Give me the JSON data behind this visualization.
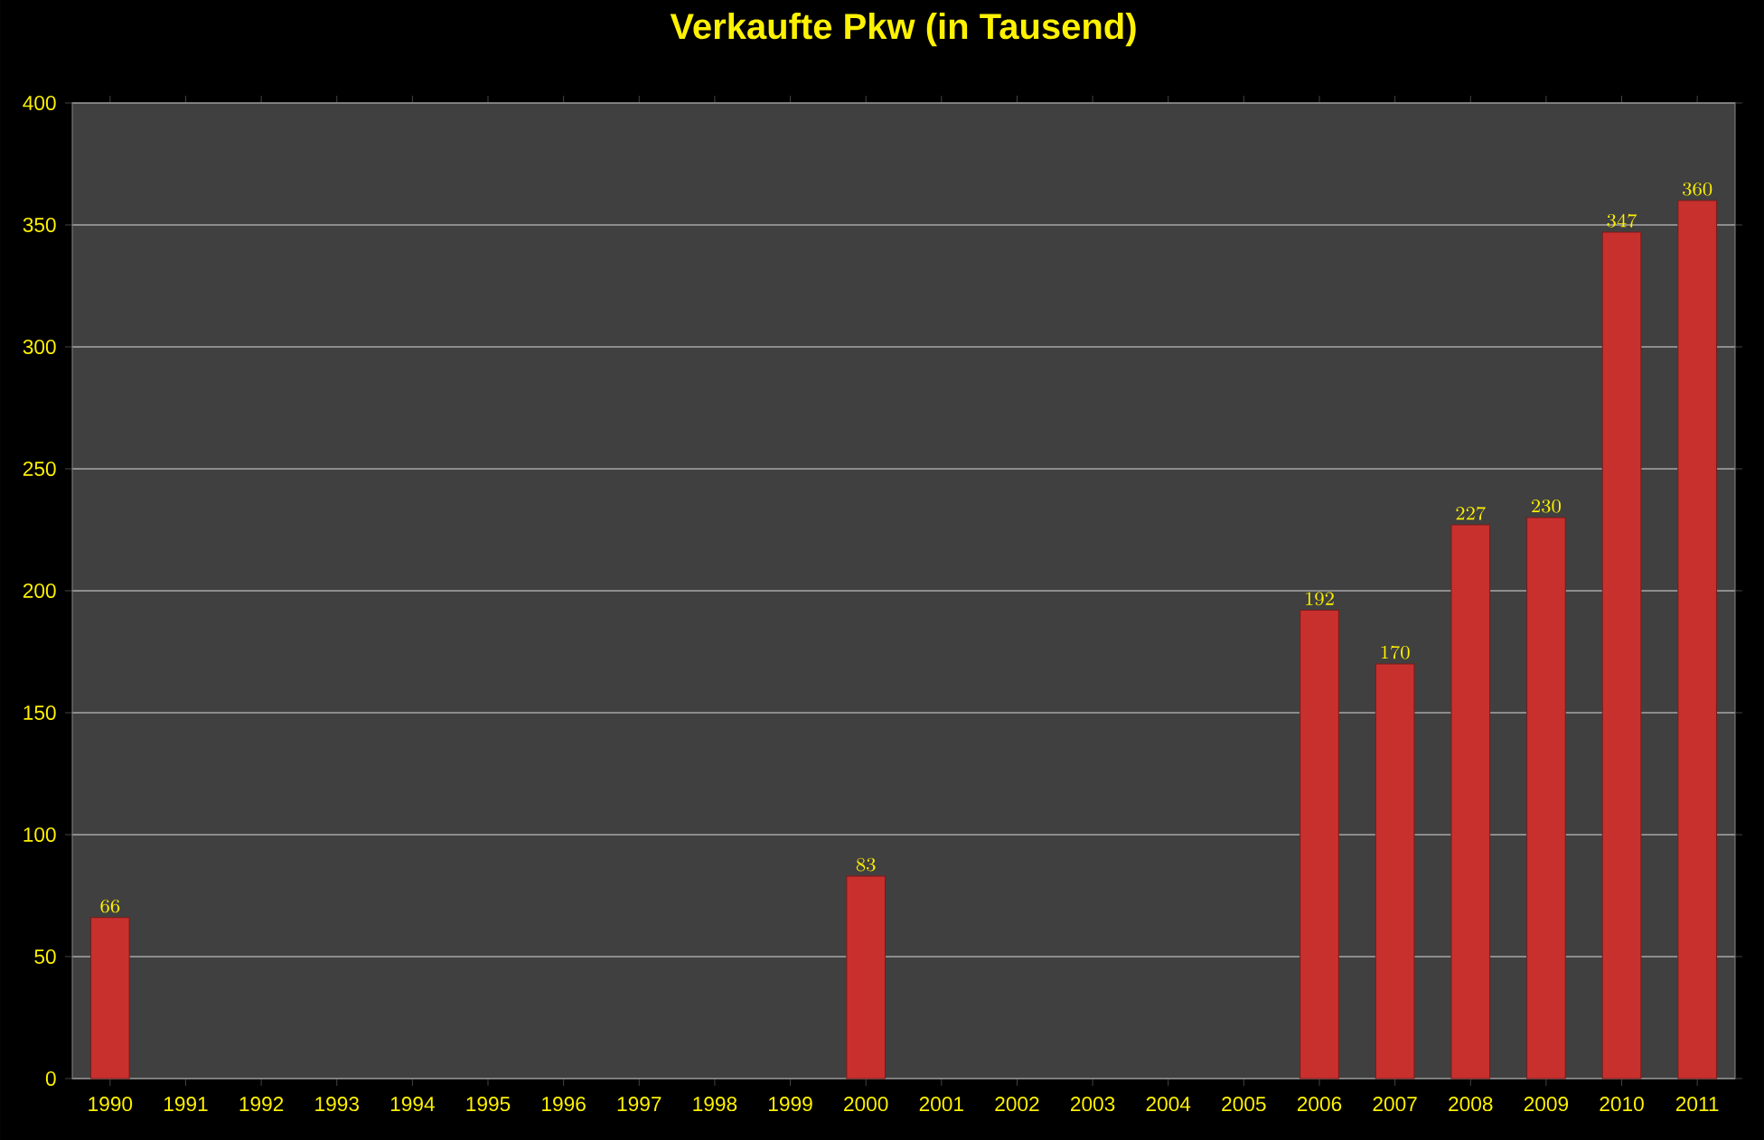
{
  "chart_data": {
    "type": "bar",
    "title": "Verkaufte Pkw (in Tausend)",
    "categories": [
      "1990",
      "1991",
      "1992",
      "1993",
      "1994",
      "1995",
      "1996",
      "1997",
      "1998",
      "1999",
      "2000",
      "2001",
      "2002",
      "2003",
      "2004",
      "2005",
      "2006",
      "2007",
      "2008",
      "2009",
      "2010",
      "2011"
    ],
    "values": [
      66,
      null,
      null,
      null,
      null,
      null,
      null,
      null,
      null,
      null,
      83,
      null,
      null,
      null,
      null,
      null,
      192,
      170,
      227,
      230,
      347,
      360
    ],
    "color": "#c8302e",
    "ylim": [
      0,
      400
    ],
    "yticks": [
      0,
      50,
      100,
      150,
      200,
      250,
      300,
      350,
      400
    ],
    "grid": "y",
    "data_labels": true
  }
}
